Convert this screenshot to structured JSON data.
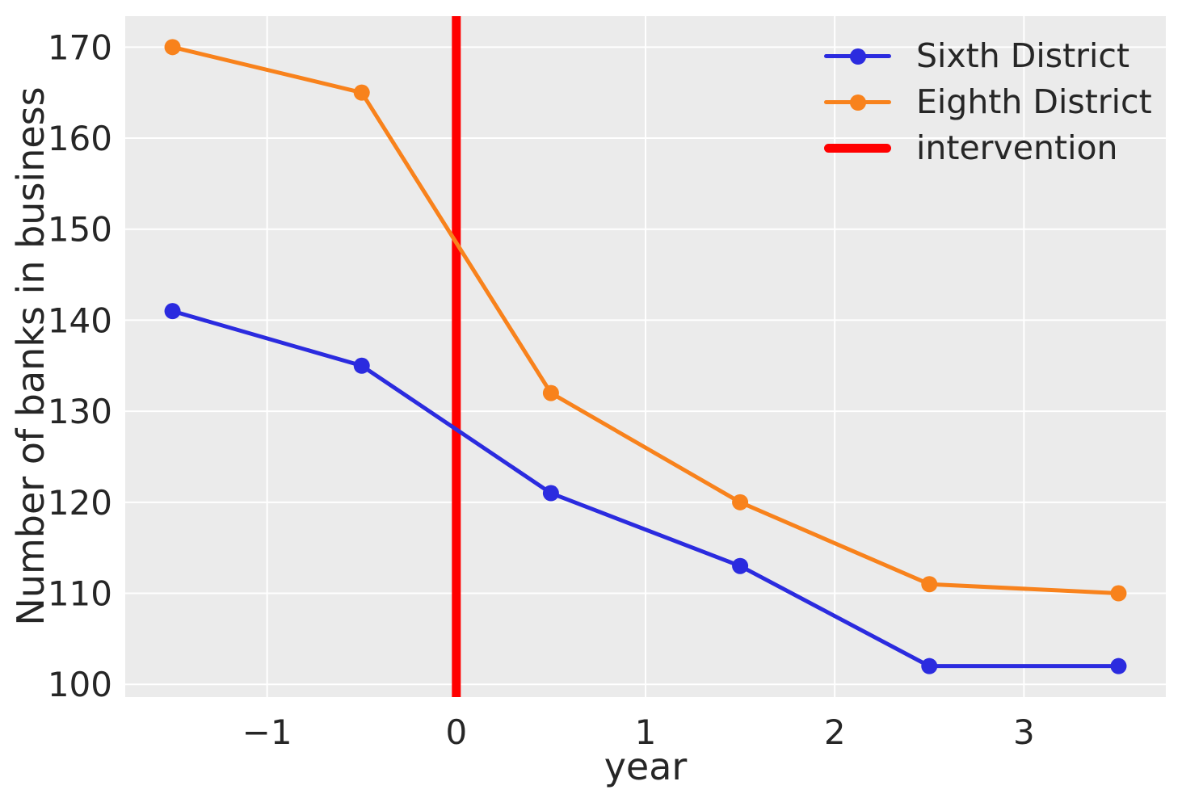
{
  "chart_data": {
    "type": "line",
    "title": "",
    "xlabel": "year",
    "ylabel": "Number of banks in business",
    "x": [
      -1.5,
      -0.5,
      0.5,
      1.5,
      2.5,
      3.5
    ],
    "series": [
      {
        "name": "Sixth District",
        "color": "#2b2bdf",
        "values": [
          141,
          135,
          121,
          113,
          102,
          102
        ]
      },
      {
        "name": "Eighth District",
        "color": "#f8821c",
        "values": [
          170,
          165,
          132,
          120,
          111,
          110
        ]
      }
    ],
    "intervention": {
      "label": "intervention",
      "x": 0,
      "color": "#ff0000"
    },
    "xticks": [
      -1,
      0,
      1,
      2,
      3
    ],
    "yticks": [
      100,
      110,
      120,
      130,
      140,
      150,
      160,
      170
    ],
    "xlim": [
      -1.75,
      3.75
    ],
    "ylim": [
      98.6,
      173.4
    ],
    "grid": true,
    "legend_position": "upper right",
    "colors": {
      "plot_background": "#ebebeb",
      "grid": "#ffffff",
      "text": "#262626"
    }
  }
}
